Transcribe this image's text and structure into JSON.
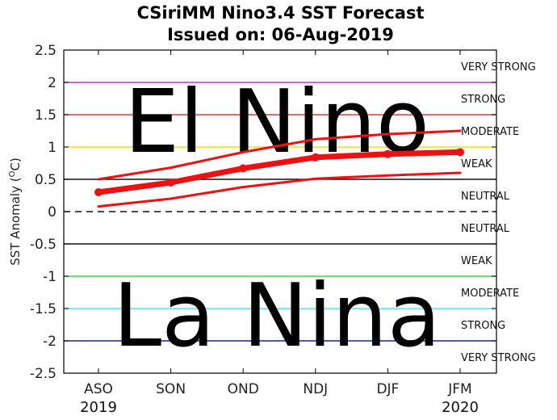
{
  "header": {
    "title": "CSiriMM Nino3.4 SST Forecast",
    "subtitle": "Issued on: 06-Aug-2019"
  },
  "overlay": {
    "el_nino": "El Nino",
    "la_nina": "La Nina"
  },
  "chart_data": {
    "type": "line",
    "title": "CSiriMM Nino3.4 SST Forecast",
    "subtitle": "Issued on: 06-Aug-2019",
    "ylabel": "SST Anomaly (°C)",
    "ylabel_main": "SST Anomaly (",
    "ylabel_sup": "O",
    "ylabel_unit": "C)",
    "ylim": [
      -2.5,
      2.5
    ],
    "yticks": [
      2.5,
      2,
      1.5,
      1,
      0.5,
      0,
      -0.5,
      -1,
      -1.5,
      -2,
      -2.5
    ],
    "ytick_labels": [
      "2.5",
      "2",
      "1.5",
      "1",
      "0.5",
      "0",
      "-0.5",
      "-1",
      "-1.5",
      "-2",
      "-2.5"
    ],
    "categories": [
      "ASO",
      "SON",
      "OND",
      "NDJ",
      "DJF",
      "JFM"
    ],
    "category_years": [
      "2019",
      "",
      "",
      "",
      "",
      "2020"
    ],
    "grid": false,
    "series": [
      {
        "name": "",
        "role": "upper",
        "color": "#ee1111",
        "values": [
          0.5,
          0.68,
          0.92,
          1.12,
          1.2,
          1.25
        ]
      },
      {
        "name": "",
        "role": "mean",
        "color": "#ee1111",
        "values": [
          0.3,
          0.45,
          0.67,
          0.84,
          0.89,
          0.92
        ]
      },
      {
        "name": "",
        "role": "lower",
        "color": "#ee1111",
        "values": [
          0.08,
          0.2,
          0.38,
          0.51,
          0.56,
          0.6
        ]
      }
    ],
    "thresholds": [
      {
        "value": 2,
        "color": "#dd22dd",
        "style": "solid"
      },
      {
        "value": 1.5,
        "color": "#ee3333",
        "style": "solid"
      },
      {
        "value": 1,
        "color": "#f2e400",
        "style": "solid"
      },
      {
        "value": 0.5,
        "color": "#111111",
        "style": "solid"
      },
      {
        "value": 0,
        "color": "#111111",
        "style": "dashed"
      },
      {
        "value": -0.5,
        "color": "#111111",
        "style": "solid"
      },
      {
        "value": -1,
        "color": "#33dd33",
        "style": "solid"
      },
      {
        "value": -1.5,
        "color": "#44eeee",
        "style": "solid"
      },
      {
        "value": -2,
        "color": "#1122bb",
        "style": "solid"
      }
    ],
    "band_labels": [
      {
        "text": "VERY STRONG",
        "y": 2.25
      },
      {
        "text": "STRONG",
        "y": 1.75
      },
      {
        "text": "MODERATE",
        "y": 1.25
      },
      {
        "text": "WEAK",
        "y": 0.75
      },
      {
        "text": "NEUTRAL",
        "y": 0.25
      },
      {
        "text": "NEUTRAL",
        "y": -0.25
      },
      {
        "text": "WEAK",
        "y": -0.75
      },
      {
        "text": "MODERATE",
        "y": -1.25
      },
      {
        "text": "STRONG",
        "y": -1.75
      },
      {
        "text": "VERY STRONG",
        "y": -2.25
      }
    ]
  }
}
